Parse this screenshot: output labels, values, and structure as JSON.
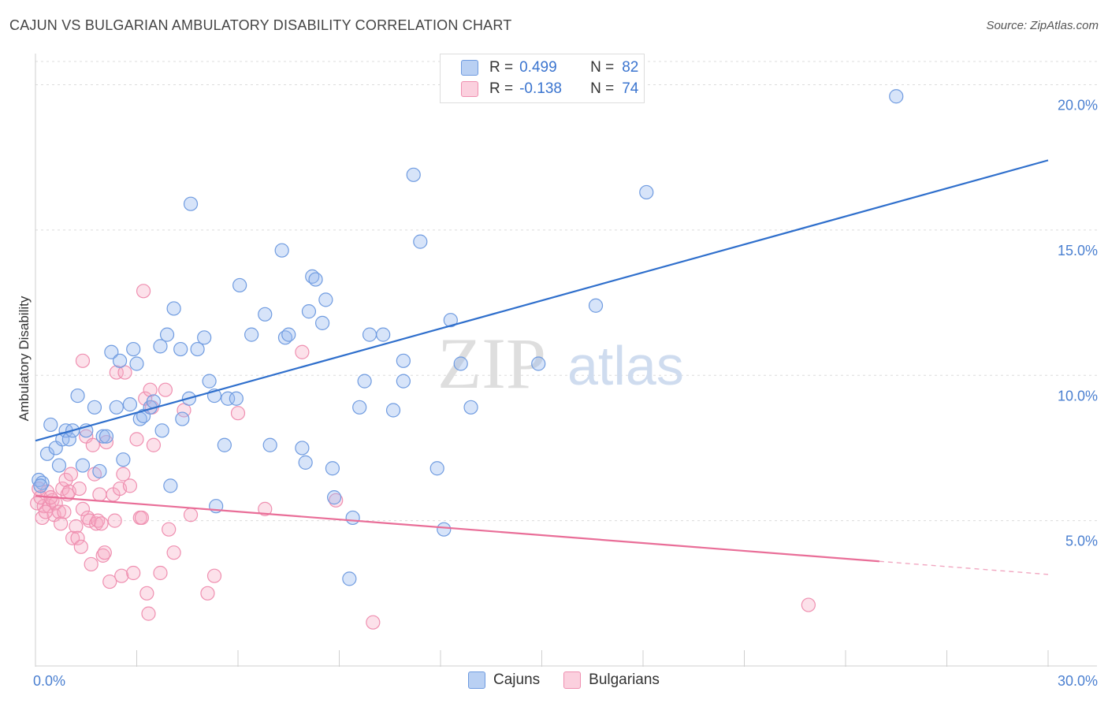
{
  "header": {
    "title": "CAJUN VS BULGARIAN AMBULATORY DISABILITY CORRELATION CHART",
    "source": "Source: ZipAtlas.com"
  },
  "legend": {
    "cajuns": {
      "r_label": "R =",
      "r_value": "0.499",
      "n_label": "N =",
      "n_value": "82"
    },
    "bulgarians": {
      "r_label": "R =",
      "r_value": "-0.138",
      "n_label": "N =",
      "n_value": "74"
    }
  },
  "bottom_legend": {
    "cajuns": "Cajuns",
    "bulgarians": "Bulgarians"
  },
  "watermark": {
    "zip": "ZIP",
    "atlas": "atlas"
  },
  "colors": {
    "cajuns": "#6f9be0",
    "bulgarians": "#ef8fb0",
    "cajuns_line": "#2f6fcc",
    "bulgarians_line": "#e96e98"
  },
  "chart_data": {
    "type": "scatter",
    "title": "CAJUN VS BULGARIAN AMBULATORY DISABILITY CORRELATION CHART",
    "xlabel": "",
    "ylabel": "Ambulatory Disability",
    "xlim": [
      0,
      30
    ],
    "ylim": [
      0,
      20.8
    ],
    "x_ticks": [
      {
        "value": 0,
        "label": "0.0%"
      },
      {
        "value": 30,
        "label": "30.0%"
      }
    ],
    "y_ticks": [
      {
        "value": 5,
        "label": "5.0%"
      },
      {
        "value": 10,
        "label": "10.0%"
      },
      {
        "value": 15,
        "label": "15.0%"
      },
      {
        "value": 20,
        "label": "20.0%"
      }
    ],
    "grid": true,
    "legend_position": "top-center",
    "series": [
      {
        "name": "Cajuns",
        "r": 0.499,
        "n": 82,
        "trend": {
          "x": [
            0,
            30
          ],
          "y": [
            7.75,
            17.4
          ]
        },
        "points": [
          [
            0.1,
            6.4
          ],
          [
            0.2,
            6.3
          ],
          [
            0.35,
            7.3
          ],
          [
            0.45,
            8.3
          ],
          [
            0.6,
            7.5
          ],
          [
            0.7,
            6.9
          ],
          [
            0.8,
            7.8
          ],
          [
            0.9,
            8.1
          ],
          [
            1.0,
            7.8
          ],
          [
            1.1,
            8.1
          ],
          [
            1.25,
            9.3
          ],
          [
            1.4,
            6.9
          ],
          [
            1.5,
            8.1
          ],
          [
            1.75,
            8.9
          ],
          [
            1.9,
            6.7
          ],
          [
            2.0,
            7.9
          ],
          [
            2.1,
            7.9
          ],
          [
            2.25,
            10.8
          ],
          [
            2.4,
            8.9
          ],
          [
            2.5,
            10.5
          ],
          [
            2.6,
            7.1
          ],
          [
            2.8,
            9.0
          ],
          [
            2.9,
            10.9
          ],
          [
            3.0,
            10.4
          ],
          [
            3.1,
            8.5
          ],
          [
            3.2,
            8.6
          ],
          [
            3.4,
            8.9
          ],
          [
            3.5,
            9.1
          ],
          [
            3.7,
            11.0
          ],
          [
            3.75,
            8.1
          ],
          [
            3.9,
            11.4
          ],
          [
            4.0,
            6.2
          ],
          [
            4.1,
            12.3
          ],
          [
            4.3,
            10.9
          ],
          [
            4.35,
            8.5
          ],
          [
            4.55,
            9.2
          ],
          [
            4.6,
            15.9
          ],
          [
            4.8,
            10.9
          ],
          [
            5.0,
            11.3
          ],
          [
            5.15,
            9.8
          ],
          [
            5.3,
            9.3
          ],
          [
            5.35,
            5.5
          ],
          [
            5.6,
            7.6
          ],
          [
            5.7,
            9.2
          ],
          [
            5.95,
            9.2
          ],
          [
            6.05,
            13.1
          ],
          [
            6.4,
            11.4
          ],
          [
            6.8,
            12.1
          ],
          [
            6.95,
            7.6
          ],
          [
            7.3,
            14.3
          ],
          [
            7.4,
            11.3
          ],
          [
            7.5,
            11.4
          ],
          [
            7.9,
            7.5
          ],
          [
            8.0,
            7.0
          ],
          [
            8.1,
            12.2
          ],
          [
            8.2,
            13.4
          ],
          [
            8.3,
            13.3
          ],
          [
            8.5,
            11.8
          ],
          [
            8.6,
            12.6
          ],
          [
            8.8,
            6.8
          ],
          [
            8.85,
            5.8
          ],
          [
            9.3,
            3.0
          ],
          [
            9.4,
            5.1
          ],
          [
            9.6,
            8.9
          ],
          [
            9.75,
            9.8
          ],
          [
            9.9,
            11.4
          ],
          [
            10.3,
            11.4
          ],
          [
            10.6,
            8.8
          ],
          [
            10.9,
            10.5
          ],
          [
            10.9,
            9.8
          ],
          [
            11.2,
            16.9
          ],
          [
            11.4,
            14.6
          ],
          [
            11.9,
            6.8
          ],
          [
            12.1,
            4.7
          ],
          [
            12.3,
            11.9
          ],
          [
            12.6,
            10.4
          ],
          [
            12.9,
            8.9
          ],
          [
            14.9,
            10.4
          ],
          [
            16.6,
            12.4
          ],
          [
            18.1,
            16.3
          ],
          [
            25.5,
            19.6
          ],
          [
            0.15,
            6.2
          ]
        ]
      },
      {
        "name": "Bulgarians",
        "r": -0.138,
        "n": 74,
        "trend": {
          "x": [
            0,
            25
          ],
          "y": [
            5.85,
            3.6
          ]
        },
        "trend_dashed": {
          "x": [
            25,
            30
          ],
          "y": [
            3.6,
            3.15
          ]
        },
        "points": [
          [
            0.05,
            5.6
          ],
          [
            0.1,
            6.1
          ],
          [
            0.2,
            5.1
          ],
          [
            0.25,
            5.5
          ],
          [
            0.35,
            6.0
          ],
          [
            0.4,
            5.5
          ],
          [
            0.5,
            5.7
          ],
          [
            0.55,
            5.2
          ],
          [
            0.6,
            5.6
          ],
          [
            0.7,
            5.3
          ],
          [
            0.75,
            4.9
          ],
          [
            0.8,
            6.1
          ],
          [
            0.85,
            5.3
          ],
          [
            0.9,
            6.4
          ],
          [
            0.95,
            5.9
          ],
          [
            1.0,
            6.0
          ],
          [
            1.05,
            6.6
          ],
          [
            1.1,
            4.4
          ],
          [
            1.2,
            4.8
          ],
          [
            1.25,
            4.4
          ],
          [
            1.3,
            6.1
          ],
          [
            1.35,
            4.1
          ],
          [
            1.4,
            5.4
          ],
          [
            1.4,
            10.5
          ],
          [
            1.5,
            7.9
          ],
          [
            1.55,
            5.1
          ],
          [
            1.6,
            5.0
          ],
          [
            1.65,
            3.5
          ],
          [
            1.7,
            7.6
          ],
          [
            1.75,
            6.6
          ],
          [
            1.8,
            4.9
          ],
          [
            1.85,
            5.0
          ],
          [
            1.9,
            5.9
          ],
          [
            1.95,
            4.9
          ],
          [
            2.0,
            3.8
          ],
          [
            2.05,
            3.9
          ],
          [
            2.1,
            7.7
          ],
          [
            2.2,
            2.9
          ],
          [
            2.3,
            5.9
          ],
          [
            2.35,
            5.0
          ],
          [
            2.4,
            10.1
          ],
          [
            2.5,
            6.1
          ],
          [
            2.55,
            3.1
          ],
          [
            2.6,
            6.6
          ],
          [
            2.65,
            10.1
          ],
          [
            2.8,
            6.2
          ],
          [
            2.9,
            3.2
          ],
          [
            3.0,
            7.8
          ],
          [
            3.1,
            5.1
          ],
          [
            3.15,
            5.1
          ],
          [
            3.2,
            12.9
          ],
          [
            3.25,
            9.2
          ],
          [
            3.3,
            2.5
          ],
          [
            3.35,
            1.8
          ],
          [
            3.4,
            9.5
          ],
          [
            3.45,
            8.9
          ],
          [
            3.5,
            7.6
          ],
          [
            3.7,
            3.2
          ],
          [
            3.85,
            9.5
          ],
          [
            3.95,
            4.7
          ],
          [
            4.1,
            3.9
          ],
          [
            4.4,
            8.8
          ],
          [
            4.6,
            5.2
          ],
          [
            5.1,
            2.5
          ],
          [
            5.3,
            3.1
          ],
          [
            6.0,
            8.7
          ],
          [
            6.8,
            5.4
          ],
          [
            7.9,
            10.8
          ],
          [
            8.9,
            5.7
          ],
          [
            10.0,
            1.5
          ],
          [
            22.9,
            2.1
          ],
          [
            0.15,
            5.8
          ],
          [
            0.3,
            5.3
          ],
          [
            0.45,
            5.8
          ]
        ]
      }
    ]
  }
}
